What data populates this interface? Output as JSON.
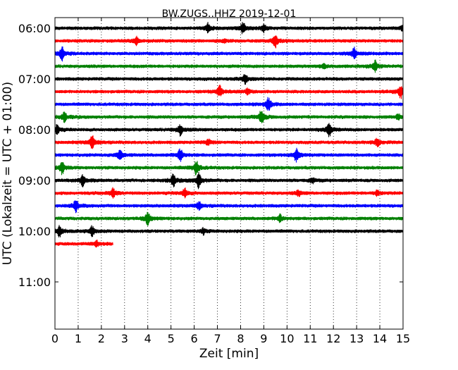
{
  "chart_data": {
    "type": "line",
    "title": "BW.ZUGS..HHZ 2019-12-01",
    "xlabel": "Zeit  [min]",
    "ylabel": "UTC (Lokalzeit = UTC + 01:00)",
    "xlim": [
      0,
      15
    ],
    "x_ticks": [
      "0",
      "1",
      "2",
      "3",
      "4",
      "5",
      "6",
      "7",
      "8",
      "9",
      "10",
      "11",
      "12",
      "13",
      "14",
      "15"
    ],
    "y_ticks": [
      "06:00",
      "07:00",
      "08:00",
      "09:00",
      "10:00",
      "11:00"
    ],
    "grid": "vertical dotted",
    "trace_interval_min": 15,
    "colors": [
      "#000000",
      "#ff0000",
      "#0000ff",
      "#008000"
    ],
    "traces": [
      {
        "start": "06:00",
        "end_min": 15,
        "color": "#000000",
        "events": [
          {
            "t": 6.6,
            "a": 5
          },
          {
            "t": 8.1,
            "a": 6
          },
          {
            "t": 9.0,
            "a": 4
          },
          {
            "t": 15.0,
            "a": 3
          }
        ]
      },
      {
        "start": "06:15",
        "end_min": 15,
        "color": "#ff0000",
        "events": [
          {
            "t": 3.5,
            "a": 4
          },
          {
            "t": 7.3,
            "a": 2
          },
          {
            "t": 9.5,
            "a": 7
          }
        ]
      },
      {
        "start": "06:30",
        "end_min": 15,
        "color": "#0000ff",
        "events": [
          {
            "t": 0.3,
            "a": 7
          },
          {
            "t": 12.9,
            "a": 6
          }
        ]
      },
      {
        "start": "06:45",
        "end_min": 15,
        "color": "#008000",
        "events": [
          {
            "t": 11.6,
            "a": 2
          },
          {
            "t": 13.8,
            "a": 6
          }
        ]
      },
      {
        "start": "07:00",
        "end_min": 15,
        "color": "#000000",
        "events": [
          {
            "t": 8.2,
            "a": 5
          }
        ]
      },
      {
        "start": "07:15",
        "end_min": 15,
        "color": "#ff0000",
        "events": [
          {
            "t": 7.1,
            "a": 6
          },
          {
            "t": 8.3,
            "a": 3
          },
          {
            "t": 14.9,
            "a": 7
          }
        ]
      },
      {
        "start": "07:30",
        "end_min": 15,
        "color": "#0000ff",
        "events": [
          {
            "t": 9.2,
            "a": 7
          }
        ]
      },
      {
        "start": "07:45",
        "end_min": 15,
        "color": "#008000",
        "events": [
          {
            "t": 0.4,
            "a": 5
          },
          {
            "t": 8.9,
            "a": 8
          },
          {
            "t": 14.8,
            "a": 3
          }
        ]
      },
      {
        "start": "08:00",
        "end_min": 15,
        "color": "#000000",
        "events": [
          {
            "t": 0.1,
            "a": 5
          },
          {
            "t": 5.4,
            "a": 6
          },
          {
            "t": 11.8,
            "a": 8
          }
        ]
      },
      {
        "start": "08:15",
        "end_min": 15,
        "color": "#ff0000",
        "events": [
          {
            "t": 1.6,
            "a": 7
          },
          {
            "t": 6.6,
            "a": 3
          },
          {
            "t": 13.9,
            "a": 5
          }
        ]
      },
      {
        "start": "08:30",
        "end_min": 15,
        "color": "#0000ff",
        "events": [
          {
            "t": 2.8,
            "a": 5
          },
          {
            "t": 5.4,
            "a": 7
          },
          {
            "t": 10.4,
            "a": 7
          }
        ]
      },
      {
        "start": "08:45",
        "end_min": 15,
        "color": "#008000",
        "events": [
          {
            "t": 0.3,
            "a": 7
          },
          {
            "t": 6.1,
            "a": 8
          }
        ]
      },
      {
        "start": "09:00",
        "end_min": 15,
        "color": "#000000",
        "events": [
          {
            "t": 1.2,
            "a": 6
          },
          {
            "t": 5.1,
            "a": 6
          },
          {
            "t": 6.2,
            "a": 8
          },
          {
            "t": 11.1,
            "a": 3
          }
        ]
      },
      {
        "start": "09:15",
        "end_min": 15,
        "color": "#ff0000",
        "events": [
          {
            "t": 2.5,
            "a": 5
          },
          {
            "t": 5.6,
            "a": 5
          },
          {
            "t": 10.5,
            "a": 3
          },
          {
            "t": 13.9,
            "a": 3
          }
        ]
      },
      {
        "start": "09:30",
        "end_min": 15,
        "color": "#0000ff",
        "events": [
          {
            "t": 0.9,
            "a": 7
          },
          {
            "t": 6.2,
            "a": 4
          }
        ]
      },
      {
        "start": "09:45",
        "end_min": 15,
        "color": "#008000",
        "events": [
          {
            "t": 4.0,
            "a": 7
          },
          {
            "t": 9.7,
            "a": 4
          }
        ]
      },
      {
        "start": "10:00",
        "end_min": 15,
        "color": "#000000",
        "events": [
          {
            "t": 0.2,
            "a": 6
          },
          {
            "t": 1.6,
            "a": 5
          },
          {
            "t": 6.4,
            "a": 3
          }
        ]
      },
      {
        "start": "10:15",
        "end_min": 2.5,
        "color": "#ff0000",
        "events": [
          {
            "t": 1.8,
            "a": 3
          }
        ]
      }
    ]
  }
}
